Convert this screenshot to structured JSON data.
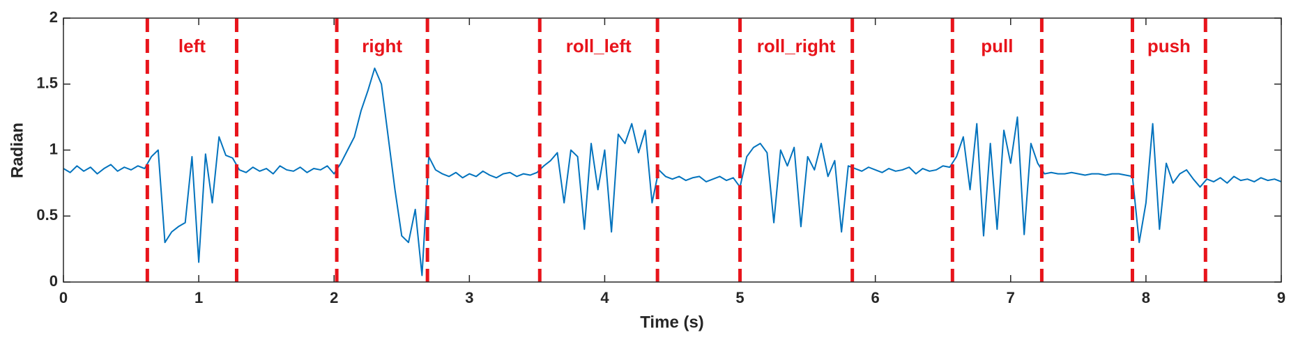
{
  "chart_data": {
    "type": "line",
    "xlabel": "Time (s)",
    "ylabel": "Radian",
    "xlim": [
      0,
      9
    ],
    "ylim": [
      0,
      2
    ],
    "xticks": [
      0,
      1,
      2,
      3,
      4,
      5,
      6,
      7,
      8,
      9
    ],
    "yticks": [
      0,
      0.5,
      1,
      1.5,
      2
    ],
    "x": [
      0,
      0.05,
      0.1,
      0.15,
      0.2,
      0.25,
      0.3,
      0.35,
      0.4,
      0.45,
      0.5,
      0.55,
      0.6,
      0.65,
      0.7,
      0.75,
      0.8,
      0.85,
      0.9,
      0.95,
      1,
      1.05,
      1.1,
      1.15,
      1.2,
      1.25,
      1.3,
      1.35,
      1.4,
      1.45,
      1.5,
      1.55,
      1.6,
      1.65,
      1.7,
      1.75,
      1.8,
      1.85,
      1.9,
      1.95,
      2,
      2.05,
      2.1,
      2.15,
      2.2,
      2.25,
      2.3,
      2.35,
      2.4,
      2.45,
      2.5,
      2.55,
      2.6,
      2.65,
      2.7,
      2.75,
      2.8,
      2.85,
      2.9,
      2.95,
      3,
      3.05,
      3.1,
      3.15,
      3.2,
      3.25,
      3.3,
      3.35,
      3.4,
      3.45,
      3.5,
      3.55,
      3.6,
      3.65,
      3.7,
      3.75,
      3.8,
      3.85,
      3.9,
      3.95,
      4,
      4.05,
      4.1,
      4.15,
      4.2,
      4.25,
      4.3,
      4.35,
      4.4,
      4.45,
      4.5,
      4.55,
      4.6,
      4.65,
      4.7,
      4.75,
      4.8,
      4.85,
      4.9,
      4.95,
      5,
      5.05,
      5.1,
      5.15,
      5.2,
      5.25,
      5.3,
      5.35,
      5.4,
      5.45,
      5.5,
      5.55,
      5.6,
      5.65,
      5.7,
      5.75,
      5.8,
      5.85,
      5.9,
      5.95,
      6,
      6.05,
      6.1,
      6.15,
      6.2,
      6.25,
      6.3,
      6.35,
      6.4,
      6.45,
      6.5,
      6.55,
      6.6,
      6.65,
      6.7,
      6.75,
      6.8,
      6.85,
      6.9,
      6.95,
      7,
      7.05,
      7.1,
      7.15,
      7.2,
      7.25,
      7.3,
      7.35,
      7.4,
      7.45,
      7.5,
      7.55,
      7.6,
      7.65,
      7.7,
      7.75,
      7.8,
      7.85,
      7.9,
      7.95,
      8,
      8.05,
      8.1,
      8.15,
      8.2,
      8.25,
      8.3,
      8.35,
      8.4,
      8.45,
      8.5,
      8.55,
      8.6,
      8.65,
      8.7,
      8.75,
      8.8,
      8.85,
      8.9,
      8.95,
      9
    ],
    "series": [
      {
        "color": "#0072bd",
        "values": [
          0.86,
          0.83,
          0.88,
          0.84,
          0.87,
          0.82,
          0.86,
          0.89,
          0.84,
          0.87,
          0.85,
          0.88,
          0.86,
          0.95,
          1.0,
          0.3,
          0.38,
          0.42,
          0.45,
          0.95,
          0.15,
          0.97,
          0.6,
          1.1,
          0.96,
          0.94,
          0.85,
          0.83,
          0.87,
          0.84,
          0.86,
          0.82,
          0.88,
          0.85,
          0.84,
          0.87,
          0.83,
          0.86,
          0.85,
          0.88,
          0.82,
          0.9,
          1.0,
          1.1,
          1.3,
          1.45,
          1.62,
          1.5,
          1.1,
          0.7,
          0.35,
          0.3,
          0.55,
          0.05,
          0.95,
          0.85,
          0.82,
          0.8,
          0.83,
          0.79,
          0.82,
          0.8,
          0.84,
          0.81,
          0.79,
          0.82,
          0.83,
          0.8,
          0.82,
          0.81,
          0.83,
          0.88,
          0.92,
          0.98,
          0.6,
          1.0,
          0.95,
          0.4,
          1.05,
          0.7,
          1.0,
          0.38,
          1.12,
          1.05,
          1.2,
          0.98,
          1.15,
          0.6,
          0.85,
          0.8,
          0.78,
          0.8,
          0.77,
          0.79,
          0.8,
          0.76,
          0.78,
          0.8,
          0.77,
          0.79,
          0.72,
          0.95,
          1.02,
          1.05,
          0.98,
          0.45,
          1.0,
          0.88,
          1.02,
          0.42,
          0.95,
          0.85,
          1.05,
          0.8,
          0.92,
          0.38,
          0.88,
          0.86,
          0.84,
          0.87,
          0.85,
          0.83,
          0.86,
          0.84,
          0.85,
          0.87,
          0.82,
          0.86,
          0.84,
          0.85,
          0.88,
          0.87,
          0.95,
          1.1,
          0.7,
          1.2,
          0.35,
          1.05,
          0.4,
          1.15,
          0.9,
          1.25,
          0.36,
          1.05,
          0.9,
          0.82,
          0.83,
          0.82,
          0.82,
          0.83,
          0.82,
          0.81,
          0.82,
          0.82,
          0.81,
          0.82,
          0.82,
          0.81,
          0.8,
          0.3,
          0.6,
          1.2,
          0.4,
          0.9,
          0.75,
          0.82,
          0.85,
          0.78,
          0.72,
          0.78,
          0.76,
          0.79,
          0.75,
          0.8,
          0.77,
          0.78,
          0.76,
          0.79,
          0.77,
          0.78,
          0.76
        ]
      }
    ],
    "segment_color": "#e8141b",
    "segments": [
      {
        "label": "left",
        "start": 0.62,
        "end": 1.28
      },
      {
        "label": "right",
        "start": 2.02,
        "end": 2.69
      },
      {
        "label": "roll_left",
        "start": 3.52,
        "end": 4.39
      },
      {
        "label": "roll_right",
        "start": 5.0,
        "end": 5.83
      },
      {
        "label": "pull",
        "start": 6.57,
        "end": 7.23
      },
      {
        "label": "push",
        "start": 7.9,
        "end": 8.44
      }
    ]
  }
}
